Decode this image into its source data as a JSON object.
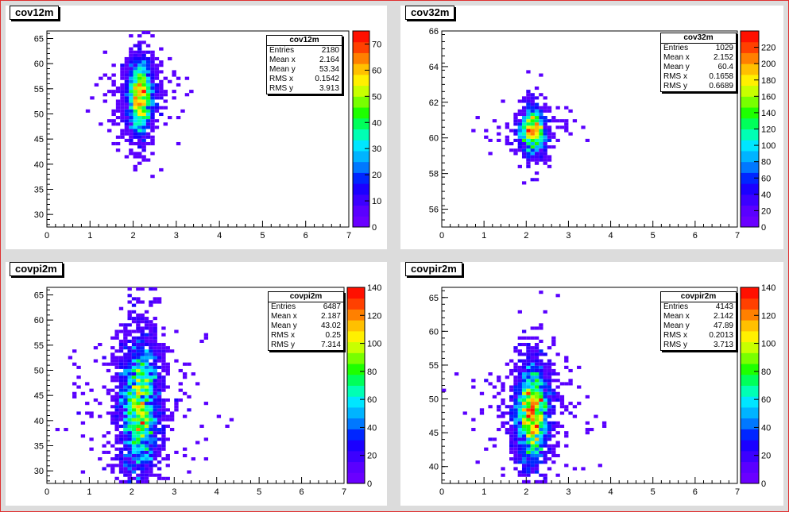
{
  "canvas": {
    "frame_color": "#e03030"
  },
  "colors": {
    "palette": [
      "#6a00ff",
      "#5a00ff",
      "#3c00ff",
      "#1b00ff",
      "#0026ff",
      "#0078ff",
      "#00b4ff",
      "#00e6ff",
      "#00ffb4",
      "#00ff5a",
      "#1eff00",
      "#78ff00",
      "#c8ff00",
      "#fff000",
      "#ffc000",
      "#ff8000",
      "#ff4000",
      "#ff1000"
    ]
  },
  "pads": [
    {
      "title": "cov12m",
      "stats": {
        "title": "cov12m",
        "rows": [
          {
            "label": "Entries",
            "value": "2180"
          },
          {
            "label": "Mean x",
            "value": "2.164"
          },
          {
            "label": "Mean y",
            "value": "53.34"
          },
          {
            "label": "RMS x",
            "value": "0.1542"
          },
          {
            "label": "RMS y",
            "value": "3.913"
          }
        ]
      },
      "chart_data": {
        "type": "heatmap",
        "title": "cov12m",
        "xlim": [
          0,
          7
        ],
        "ylim": [
          27.5,
          66.5
        ],
        "x_ticks": [
          "0",
          "1",
          "2",
          "3",
          "4",
          "5",
          "6",
          "7"
        ],
        "y_ticks": [
          "30",
          "35",
          "40",
          "45",
          "50",
          "55",
          "60",
          "65"
        ],
        "z_max": 75,
        "z_ticks": [
          "0",
          "10",
          "20",
          "30",
          "40",
          "50",
          "60",
          "70"
        ],
        "mean_x": 2.164,
        "rms_x": 0.1542,
        "mean_y": 53.34,
        "rms_y": 3.913,
        "entries": 2180
      }
    },
    {
      "title": "cov32m",
      "stats": {
        "title": "cov32m",
        "rows": [
          {
            "label": "Entries",
            "value": "1029"
          },
          {
            "label": "Mean x",
            "value": "2.152"
          },
          {
            "label": "Mean y",
            "value": "60.4"
          },
          {
            "label": "RMS x",
            "value": "0.1658"
          },
          {
            "label": "RMS y",
            "value": "0.6689"
          }
        ]
      },
      "chart_data": {
        "type": "heatmap",
        "title": "cov32m",
        "xlim": [
          0,
          7
        ],
        "ylim": [
          55,
          66
        ],
        "x_ticks": [
          "0",
          "1",
          "2",
          "3",
          "4",
          "5",
          "6",
          "7"
        ],
        "y_ticks": [
          "56",
          "58",
          "60",
          "62",
          "64",
          "66"
        ],
        "z_max": 240,
        "z_ticks": [
          "0",
          "20",
          "40",
          "60",
          "80",
          "100",
          "120",
          "140",
          "160",
          "180",
          "200",
          "220"
        ],
        "mean_x": 2.152,
        "rms_x": 0.1658,
        "mean_y": 60.4,
        "rms_y": 0.6689,
        "entries": 1029
      }
    },
    {
      "title": "covpi2m",
      "stats": {
        "title": "covpi2m",
        "rows": [
          {
            "label": "Entries",
            "value": "6487"
          },
          {
            "label": "Mean x",
            "value": "2.187"
          },
          {
            "label": "Mean y",
            "value": "43.02"
          },
          {
            "label": "RMS x",
            "value": "0.25"
          },
          {
            "label": "RMS y",
            "value": "7.314"
          }
        ]
      },
      "chart_data": {
        "type": "heatmap",
        "title": "covpi2m",
        "xlim": [
          0,
          7
        ],
        "ylim": [
          27.5,
          66.5
        ],
        "x_ticks": [
          "0",
          "1",
          "2",
          "3",
          "4",
          "5",
          "6",
          "7"
        ],
        "y_ticks": [
          "30",
          "35",
          "40",
          "45",
          "50",
          "55",
          "60",
          "65"
        ],
        "z_max": 140,
        "z_ticks": [
          "0",
          "20",
          "40",
          "60",
          "80",
          "100",
          "120",
          "140"
        ],
        "mean_x": 2.187,
        "rms_x": 0.25,
        "mean_y": 43.02,
        "rms_y": 7.314,
        "entries": 6487
      }
    },
    {
      "title": "covpir2m",
      "stats": {
        "title": "covpir2m",
        "rows": [
          {
            "label": "Entries",
            "value": "4143"
          },
          {
            "label": "Mean x",
            "value": "2.142"
          },
          {
            "label": "Mean y",
            "value": "47.89"
          },
          {
            "label": "RMS x",
            "value": "0.2013"
          },
          {
            "label": "RMS y",
            "value": "3.713"
          }
        ]
      },
      "chart_data": {
        "type": "heatmap",
        "title": "covpir2m",
        "xlim": [
          0,
          7
        ],
        "ylim": [
          37.5,
          66.5
        ],
        "x_ticks": [
          "0",
          "1",
          "2",
          "3",
          "4",
          "5",
          "6",
          "7"
        ],
        "y_ticks": [
          "40",
          "45",
          "50",
          "55",
          "60",
          "65"
        ],
        "z_max": 140,
        "z_ticks": [
          "0",
          "20",
          "40",
          "60",
          "80",
          "100",
          "120",
          "140"
        ],
        "mean_x": 2.142,
        "rms_x": 0.2013,
        "mean_y": 47.89,
        "rms_y": 3.713,
        "entries": 4143
      }
    }
  ]
}
